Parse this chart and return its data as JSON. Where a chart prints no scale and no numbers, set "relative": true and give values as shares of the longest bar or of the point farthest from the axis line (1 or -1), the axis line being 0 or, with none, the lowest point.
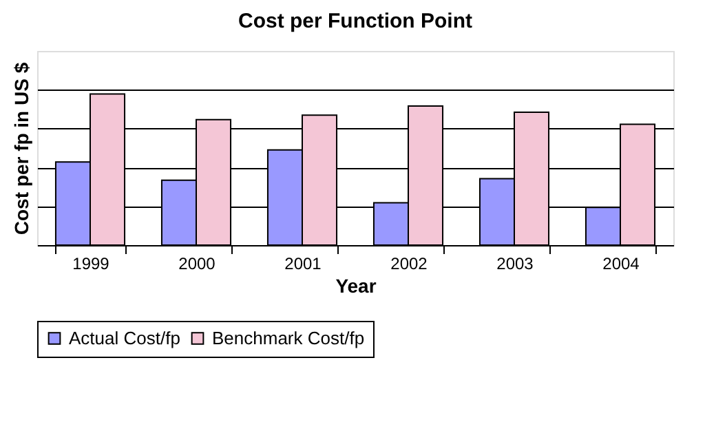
{
  "chart_data": {
    "type": "bar",
    "title": "Cost per Function Point",
    "xlabel": "Year",
    "ylabel": "Cost per fp in US $",
    "relative": true,
    "grid": "y",
    "legend": "bottom",
    "categories": [
      "1999",
      "2000",
      "2001",
      "2002",
      "2003",
      "2004"
    ],
    "series": [
      {
        "name": "Actual Cost/fp",
        "color": "#9999ff",
        "values": [
          0.55,
          0.43,
          0.63,
          0.28,
          0.44,
          0.25
        ]
      },
      {
        "name": "Benchmark Cost/fp",
        "color": "#f4c6d6",
        "values": [
          1.0,
          0.83,
          0.86,
          0.92,
          0.88,
          0.8
        ]
      }
    ]
  }
}
